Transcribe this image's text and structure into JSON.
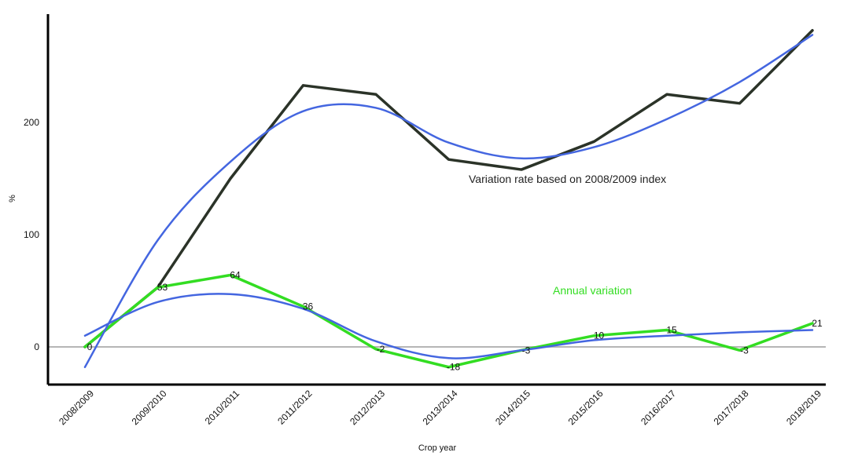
{
  "chart_data": {
    "type": "line",
    "xlabel": "Crop year",
    "ylabel": "%",
    "ylim": [
      -33,
      288
    ],
    "yticks": [
      0,
      100,
      200
    ],
    "reference_line_y": 0,
    "categories": [
      "2008/2009",
      "2009/2010",
      "2010/2011",
      "2011/2012",
      "2012/2013",
      "2013/2014",
      "2014/2015",
      "2015/2016",
      "2016/2017",
      "2017/2018",
      "2018/2019"
    ],
    "series": [
      {
        "id": "cumulative",
        "values": [
          0,
          53,
          150,
          233,
          225,
          167,
          158,
          183,
          225,
          217,
          282
        ],
        "color": "#2b3328"
      },
      {
        "id": "cumulative_trend",
        "values": [
          -18,
          95,
          165,
          210,
          213,
          182,
          168,
          178,
          203,
          236,
          278
        ],
        "color": "#4466e0"
      },
      {
        "id": "annual",
        "values": [
          0,
          53,
          64,
          36,
          -2,
          -18,
          -3,
          10,
          15,
          -3,
          21
        ],
        "color": "#33dd22",
        "data_labels": [
          "0",
          "53",
          "64",
          "36",
          "-2",
          "-18",
          "-3",
          "10",
          "15",
          "-3",
          "21"
        ]
      },
      {
        "id": "annual_trend",
        "values": [
          10,
          40,
          47,
          34,
          5,
          -10,
          -3,
          6,
          10,
          13,
          15
        ],
        "color": "#4466e0"
      }
    ],
    "annotations": [
      {
        "text": "Variation rate based on 2008/2009 index",
        "color": "#222222",
        "series": "cumulative"
      },
      {
        "text": "Annual variation",
        "color": "#33dd22",
        "series": "annual"
      }
    ]
  }
}
